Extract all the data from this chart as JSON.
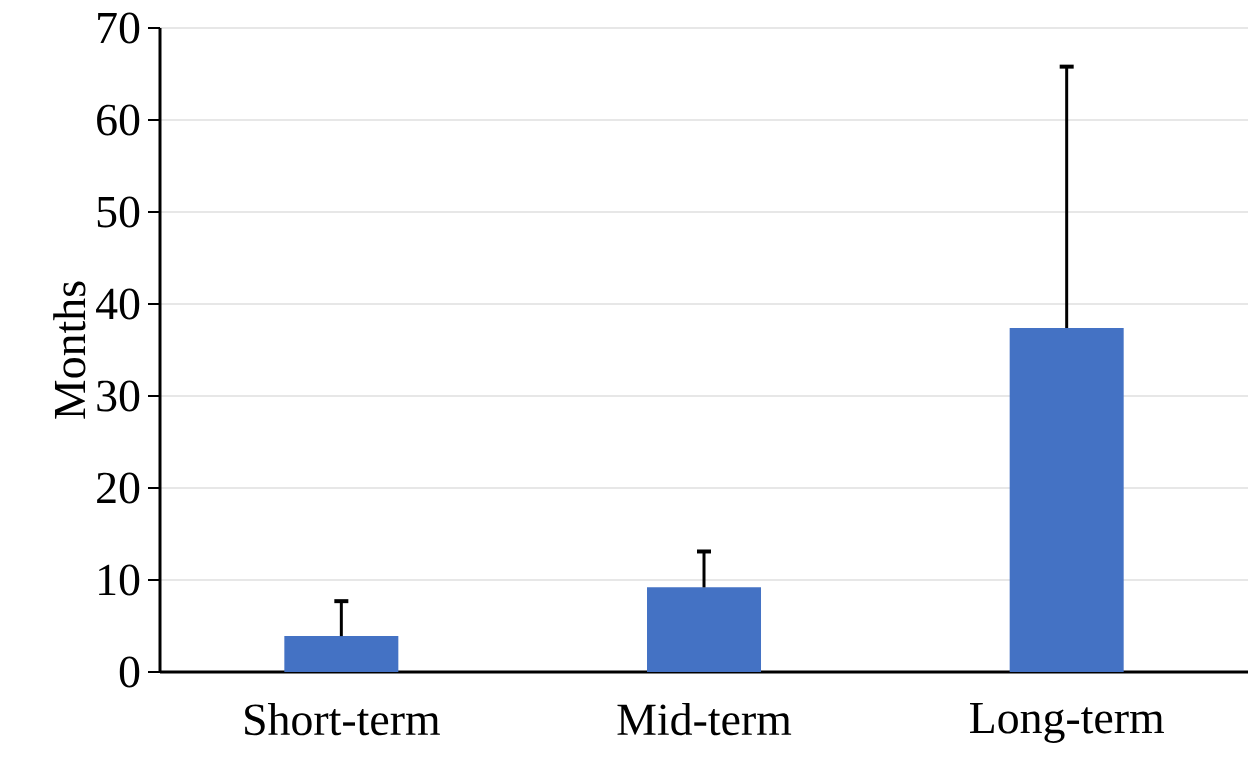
{
  "chart_data": {
    "type": "bar",
    "ylabel": "Months",
    "categories": [
      "Short-term",
      "Mid-term",
      "Long-term"
    ],
    "values": [
      3.9,
      9.2,
      37.4
    ],
    "errors": [
      [
        3.9,
        7.7
      ],
      [
        9.2,
        13.1
      ],
      [
        37.4,
        65.8
      ]
    ],
    "color": "#4472c4",
    "ylim": [
      0,
      70
    ],
    "yticks": [
      0,
      10,
      20,
      30,
      40,
      50,
      60,
      70
    ],
    "grid": "y"
  }
}
